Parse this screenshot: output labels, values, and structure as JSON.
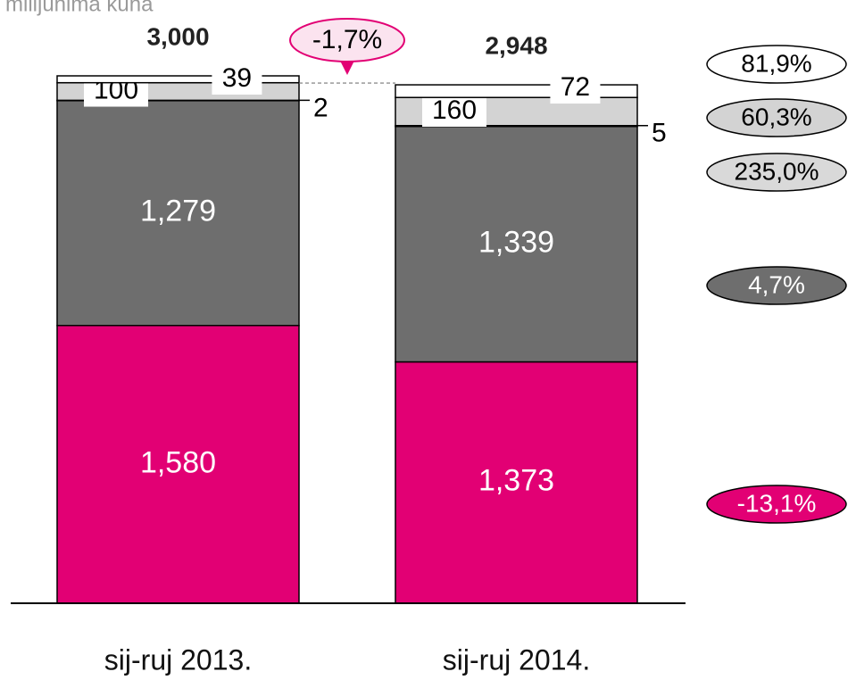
{
  "chart_data": {
    "type": "stacked-bar",
    "subtitle": "u milijunima kuna",
    "categories": [
      "sij-ruj 2013.",
      "sij-ruj 2014."
    ],
    "totals": [
      3000,
      2948
    ],
    "total_labels": [
      "3,000",
      "2,948"
    ],
    "total_change": "-1,7%",
    "series": [
      {
        "color": "#e20074",
        "values": [
          1580,
          1373
        ],
        "value_labels": [
          "1,580",
          "1,373"
        ],
        "change": "-13,1%"
      },
      {
        "color": "#6e6e6e",
        "values": [
          1279,
          1339
        ],
        "value_labels": [
          "1,279",
          "1,339"
        ],
        "change": "4,7%"
      },
      {
        "color": "#d9d9d9",
        "values": [
          2,
          5
        ],
        "change": "235,0%"
      },
      {
        "color": "#d3d3d3",
        "values": [
          100,
          160
        ],
        "change": "60,3%"
      },
      {
        "color": "#ffffff",
        "values": [
          39,
          72
        ],
        "change": "81,9%"
      }
    ]
  }
}
